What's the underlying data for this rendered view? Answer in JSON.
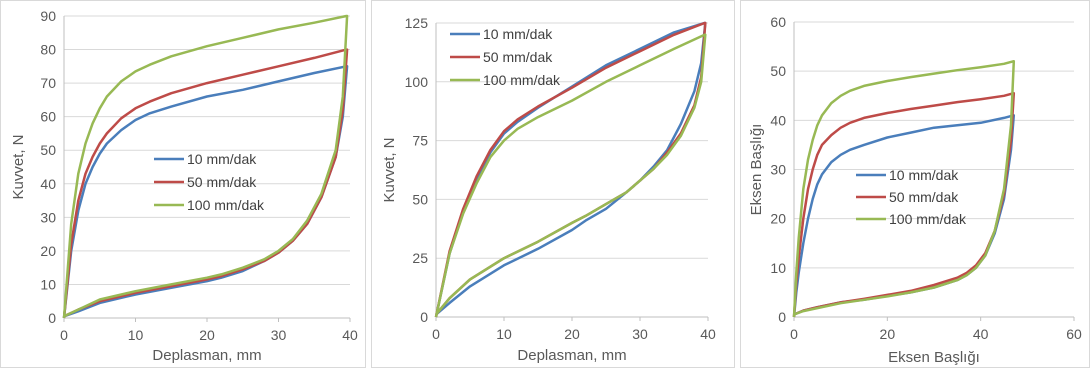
{
  "chart_data": [
    {
      "type": "line",
      "xlabel": "Deplasman, mm",
      "ylabel": "Kuvvet, N",
      "xlim": [
        0,
        40
      ],
      "ylim": [
        0,
        90
      ],
      "xticks": [
        "0",
        "10",
        "20",
        "30",
        "40"
      ],
      "yticks": [
        "0",
        "10",
        "20",
        "30",
        "40",
        "50",
        "60",
        "70",
        "80",
        "90"
      ],
      "grid": true,
      "legend_position": "center-right",
      "series": [
        {
          "name": "10 mm/dak",
          "color": "#4a7ebb",
          "x": [
            0,
            1,
            2,
            3,
            4,
            5,
            6,
            8,
            10,
            12,
            15,
            20,
            25,
            30,
            35,
            39.5,
            39.6,
            39,
            38,
            36,
            34,
            32,
            30,
            28,
            25,
            22,
            20,
            15,
            10,
            5,
            2,
            0
          ],
          "y": [
            0,
            20,
            32,
            40,
            45,
            49,
            52,
            56,
            59,
            61,
            63,
            66,
            68,
            70.5,
            73,
            75,
            75,
            60,
            48,
            36,
            28,
            23,
            19.5,
            17,
            14,
            12,
            11,
            9,
            7,
            4.5,
            2,
            0.5
          ]
        },
        {
          "name": "50 mm/dak",
          "color": "#be4b48",
          "x": [
            0,
            1,
            2,
            3,
            4,
            5,
            6,
            8,
            10,
            12,
            15,
            20,
            25,
            30,
            35,
            39.5,
            39.6,
            39,
            38,
            36,
            34,
            32,
            30,
            28,
            25,
            22,
            20,
            15,
            10,
            5,
            2,
            0
          ],
          "y": [
            0,
            22,
            35,
            43,
            48,
            52,
            55,
            59.5,
            62.5,
            64.5,
            67,
            70,
            72.5,
            75,
            77.5,
            80,
            80,
            62,
            48,
            36,
            28,
            23,
            19.5,
            17,
            14.5,
            12.5,
            11.5,
            9.5,
            7.5,
            5,
            2.5,
            0.5
          ]
        },
        {
          "name": "100 mm/dak",
          "color": "#98b954",
          "x": [
            0,
            1,
            2,
            3,
            4,
            5,
            6,
            8,
            10,
            12,
            15,
            20,
            25,
            30,
            35,
            39.5,
            39.6,
            39,
            38,
            36,
            34,
            32,
            30,
            28,
            25,
            22,
            20,
            15,
            10,
            5,
            2,
            0
          ],
          "y": [
            0,
            28,
            43,
            52,
            58,
            62.5,
            66,
            70.5,
            73.5,
            75.5,
            78,
            81,
            83.5,
            86,
            88,
            90,
            90,
            66,
            50,
            37,
            29,
            23.5,
            20,
            17.5,
            15,
            13,
            12,
            10,
            8,
            5.5,
            2.5,
            0.5
          ]
        }
      ]
    },
    {
      "type": "line",
      "xlabel": "Deplasman, mm",
      "ylabel": "Kuvvet, N",
      "xlim": [
        0,
        40
      ],
      "ylim": [
        0,
        125
      ],
      "xticks": [
        "0",
        "10",
        "20",
        "30",
        "40"
      ],
      "yticks": [
        "0",
        "25",
        "50",
        "75",
        "100",
        "125"
      ],
      "grid": true,
      "legend_position": "top-left",
      "series": [
        {
          "name": "10 mm/dak",
          "color": "#4a7ebb",
          "x": [
            0,
            2,
            4,
            6,
            8,
            10,
            12,
            15,
            20,
            25,
            30,
            35,
            39.5,
            39.6,
            39,
            38,
            36,
            34,
            32,
            30,
            28,
            25,
            22,
            20,
            15,
            10,
            5,
            2,
            0
          ],
          "y": [
            0,
            27,
            45,
            59,
            70,
            78,
            83,
            89,
            98,
            107,
            114,
            121,
            125,
            125,
            108,
            96,
            82,
            71,
            64,
            58,
            53,
            46,
            41,
            37,
            29,
            22,
            13,
            6,
            1
          ]
        },
        {
          "name": "50 mm/dak",
          "color": "#be4b48",
          "x": [
            0,
            2,
            4,
            6,
            8,
            10,
            12,
            15,
            20,
            25,
            30,
            35,
            39.5,
            39.6,
            39,
            38,
            36,
            34,
            32,
            30,
            28,
            25,
            22,
            20,
            15,
            10,
            5,
            2,
            0
          ],
          "y": [
            0,
            28,
            46,
            60,
            71,
            79,
            84,
            89.5,
            97.5,
            106,
            113,
            120,
            125,
            125,
            102,
            90,
            78,
            70,
            63,
            58,
            53,
            48,
            43,
            40,
            32,
            25,
            16,
            8,
            1
          ]
        },
        {
          "name": "100 mm/dak",
          "color": "#98b954",
          "x": [
            0,
            2,
            4,
            6,
            8,
            10,
            12,
            15,
            20,
            25,
            30,
            35,
            39.5,
            39.6,
            39,
            38,
            36,
            34,
            32,
            30,
            28,
            25,
            22,
            20,
            15,
            10,
            5,
            2,
            0
          ],
          "y": [
            0,
            27,
            44,
            57,
            68,
            75,
            80,
            85,
            92,
            100,
            107,
            114,
            120,
            120,
            100,
            89,
            77,
            69,
            63,
            58,
            53,
            48,
            43,
            40,
            32,
            25,
            16,
            8,
            1
          ]
        }
      ]
    },
    {
      "type": "line",
      "xlabel": "Eksen Başlığı",
      "ylabel": "Eksen Başlığı",
      "xlim": [
        0,
        60
      ],
      "ylim": [
        0,
        60
      ],
      "xticks": [
        "0",
        "20",
        "40",
        "60"
      ],
      "yticks": [
        "0",
        "10",
        "20",
        "30",
        "40",
        "50",
        "60"
      ],
      "grid": true,
      "legend_position": "center-right",
      "series": [
        {
          "name": "10 mm/dak",
          "color": "#4a7ebb",
          "x": [
            0,
            0.5,
            1,
            2,
            3,
            4,
            5,
            6,
            8,
            10,
            12,
            15,
            20,
            25,
            30,
            35,
            40,
            45,
            47,
            47.1,
            46.5,
            45,
            43,
            41,
            39,
            37,
            35,
            30,
            25,
            20,
            15,
            10,
            5,
            2,
            0
          ],
          "y": [
            0,
            5,
            9,
            15,
            20,
            24,
            27,
            29,
            31.5,
            33,
            34,
            35,
            36.5,
            37.5,
            38.5,
            39,
            39.5,
            40.5,
            41,
            41,
            34,
            24,
            17,
            12.5,
            10,
            8.5,
            7.5,
            6,
            5,
            4.3,
            3.5,
            3,
            2,
            1.3,
            0.5
          ]
        },
        {
          "name": "50 mm/dak",
          "color": "#be4b48",
          "x": [
            0,
            0.5,
            1,
            2,
            3,
            4,
            5,
            6,
            8,
            10,
            12,
            15,
            20,
            25,
            30,
            35,
            40,
            45,
            47,
            47.1,
            46.5,
            45,
            43,
            41,
            39,
            37,
            35,
            30,
            25,
            20,
            15,
            10,
            5,
            2,
            0
          ],
          "y": [
            0,
            7,
            12,
            20,
            26,
            30,
            33,
            35,
            37,
            38.5,
            39.5,
            40.5,
            41.5,
            42.3,
            43,
            43.7,
            44.3,
            45,
            45.5,
            45.5,
            36,
            25,
            17.5,
            13,
            10.5,
            9,
            8,
            6.5,
            5.3,
            4.5,
            3.7,
            3,
            2,
            1.3,
            0.5
          ]
        },
        {
          "name": "100 mm/dak",
          "color": "#98b954",
          "x": [
            0,
            0.5,
            1,
            2,
            3,
            4,
            5,
            6,
            8,
            10,
            12,
            15,
            20,
            25,
            30,
            35,
            40,
            45,
            47,
            47.1,
            46.5,
            45,
            43,
            41,
            39,
            37,
            35,
            30,
            25,
            20,
            15,
            10,
            5,
            2,
            0
          ],
          "y": [
            0,
            9,
            16,
            26,
            32,
            36,
            39,
            41,
            43.5,
            45,
            46,
            47,
            48,
            48.8,
            49.5,
            50.2,
            50.8,
            51.5,
            52,
            52,
            39,
            26,
            17.5,
            12.5,
            10,
            8.5,
            7.5,
            6,
            5,
            4.2,
            3.5,
            2.8,
            1.8,
            1.2,
            0.5
          ]
        }
      ]
    }
  ]
}
